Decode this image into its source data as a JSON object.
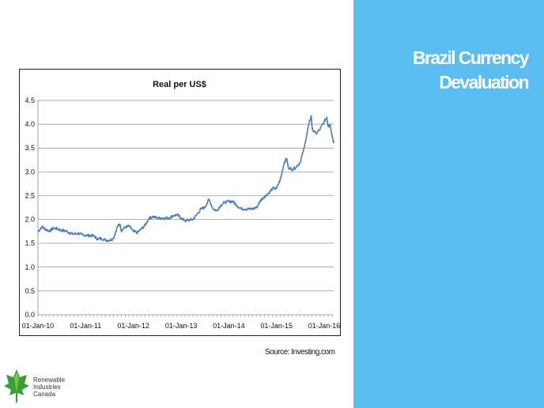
{
  "slide": {
    "title_line1": "Brazil Currency",
    "title_line2": "Devaluation",
    "source": "Source: Investing.com",
    "accent_color": "#5bbcf0"
  },
  "logo": {
    "line1": "Renewable",
    "line2": "Industries",
    "line3": "Canada",
    "icon": "maple-leaf-icon",
    "colors": [
      "#3a9d3a",
      "#7cc242"
    ]
  },
  "chart_data": {
    "type": "line",
    "title": "Real per US$",
    "xlabel": "",
    "ylabel": "",
    "ylim": [
      0,
      4.5
    ],
    "yticks": [
      "0.0",
      "0.5",
      "1.0",
      "1.5",
      "2.0",
      "2.5",
      "3.0",
      "3.5",
      "4.0",
      "4.5"
    ],
    "xticks": [
      "01-Jan-10",
      "01-Jan-11",
      "01-Jan-12",
      "01-Jan-13",
      "01-Jan-14",
      "01-Jan-15",
      "01-Jan-16"
    ],
    "grid": true,
    "legend": "none",
    "line_color": "#4a7ebb",
    "series": [
      {
        "x": [
          "2010-01-01",
          "2010-02-01",
          "2010-03-01",
          "2010-04-01",
          "2010-05-01",
          "2010-06-01",
          "2010-07-01",
          "2010-08-01",
          "2010-09-01",
          "2010-10-01",
          "2010-11-01",
          "2010-12-01",
          "2011-01-01",
          "2011-02-01",
          "2011-03-01",
          "2011-04-01",
          "2011-05-01",
          "2011-06-01",
          "2011-07-01",
          "2011-08-01",
          "2011-09-01",
          "2011-09-22",
          "2011-10-01",
          "2011-11-01",
          "2011-12-01",
          "2012-01-01",
          "2012-02-01",
          "2012-03-01",
          "2012-04-01",
          "2012-05-01",
          "2012-06-01",
          "2012-07-01",
          "2012-08-01",
          "2012-09-01",
          "2012-10-01",
          "2012-11-01",
          "2012-12-01",
          "2013-01-01",
          "2013-02-01",
          "2013-03-01",
          "2013-04-01",
          "2013-05-01",
          "2013-06-01",
          "2013-07-01",
          "2013-08-01",
          "2013-09-01",
          "2013-10-01",
          "2013-11-01",
          "2013-12-01",
          "2014-01-01",
          "2014-02-01",
          "2014-03-01",
          "2014-04-01",
          "2014-05-01",
          "2014-06-01",
          "2014-07-01",
          "2014-08-01",
          "2014-09-01",
          "2014-10-01",
          "2014-11-01",
          "2014-12-01",
          "2015-01-01",
          "2015-02-01",
          "2015-03-01",
          "2015-03-20",
          "2015-04-01",
          "2015-05-01",
          "2015-06-01",
          "2015-07-01",
          "2015-08-01",
          "2015-09-01",
          "2015-09-24",
          "2015-10-01",
          "2015-11-01",
          "2015-12-01",
          "2016-01-01",
          "2016-01-21",
          "2016-02-01",
          "2016-02-15",
          "2016-03-01",
          "2016-03-15"
        ],
        "y": [
          1.74,
          1.85,
          1.79,
          1.76,
          1.82,
          1.8,
          1.77,
          1.76,
          1.72,
          1.69,
          1.71,
          1.68,
          1.67,
          1.66,
          1.66,
          1.59,
          1.6,
          1.57,
          1.56,
          1.6,
          1.85,
          1.9,
          1.76,
          1.84,
          1.86,
          1.75,
          1.72,
          1.8,
          1.88,
          2.03,
          2.06,
          2.03,
          2.03,
          2.03,
          2.03,
          2.08,
          2.1,
          2.03,
          1.97,
          1.99,
          2.0,
          2.1,
          2.22,
          2.25,
          2.42,
          2.23,
          2.18,
          2.3,
          2.36,
          2.38,
          2.38,
          2.3,
          2.23,
          2.22,
          2.22,
          2.22,
          2.25,
          2.4,
          2.48,
          2.55,
          2.65,
          2.65,
          2.85,
          3.2,
          3.28,
          3.1,
          3.05,
          3.1,
          3.2,
          3.5,
          3.95,
          4.18,
          3.9,
          3.8,
          3.9,
          4.05,
          4.15,
          3.95,
          4.0,
          3.75,
          3.6
        ]
      }
    ]
  }
}
